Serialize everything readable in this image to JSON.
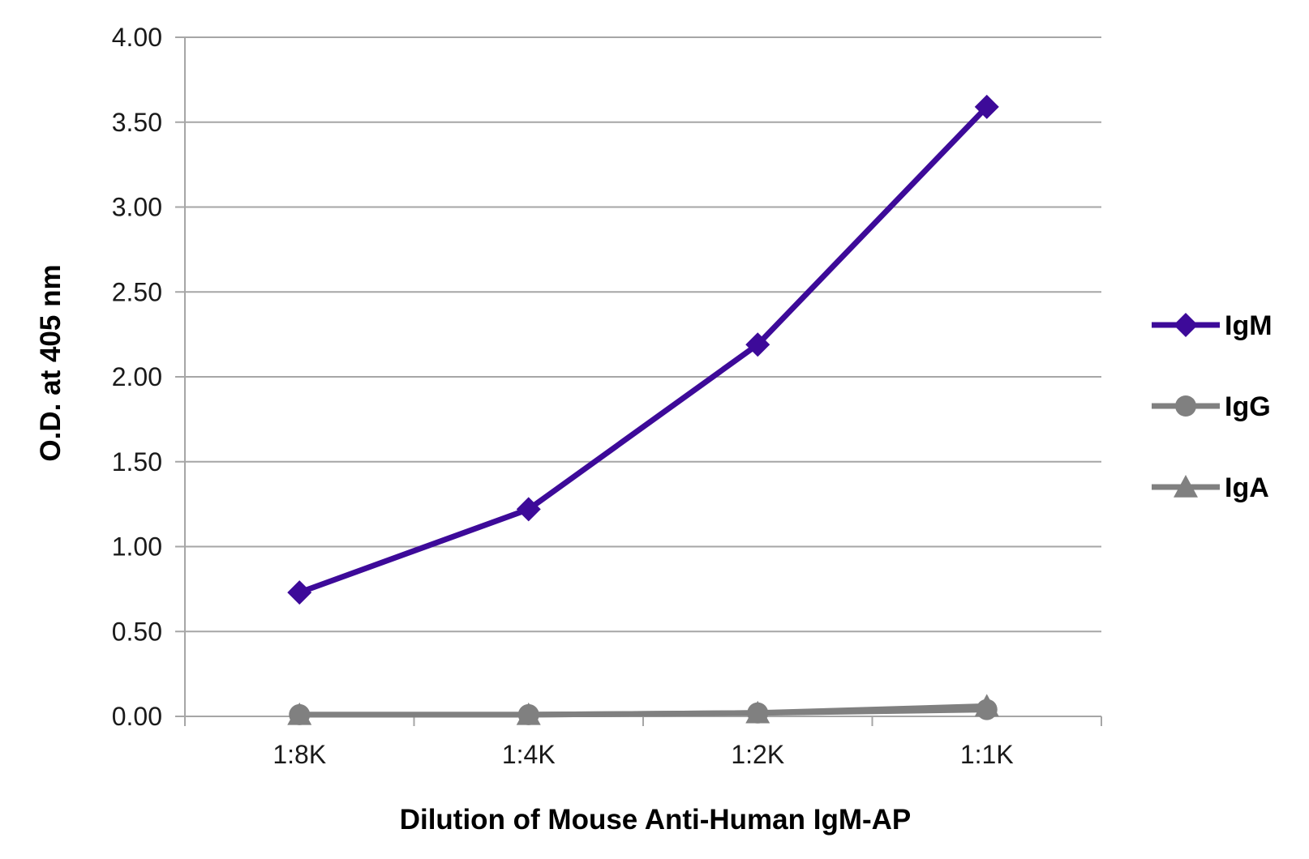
{
  "chart_data": {
    "type": "line",
    "categories": [
      "1:8K",
      "1:4K",
      "1:2K",
      "1:1K"
    ],
    "series": [
      {
        "name": "IgM",
        "values": [
          0.73,
          1.22,
          2.19,
          3.59
        ],
        "color": "#3d0a99",
        "marker": "diamond"
      },
      {
        "name": "IgG",
        "values": [
          0.01,
          0.01,
          0.02,
          0.04
        ],
        "color": "#808080",
        "marker": "circle"
      },
      {
        "name": "IgA",
        "values": [
          0.01,
          0.01,
          0.02,
          0.06
        ],
        "color": "#808080",
        "marker": "triangle"
      }
    ],
    "ylabel": "O.D. at 405 nm",
    "xlabel": "Dilution of Mouse Anti-Human IgM-AP",
    "ylim": [
      0,
      4
    ],
    "yticks": [
      "0.00",
      "0.50",
      "1.00",
      "1.50",
      "2.00",
      "2.50",
      "3.00",
      "3.50",
      "4.00"
    ],
    "grid": true,
    "legend_position": "right"
  }
}
